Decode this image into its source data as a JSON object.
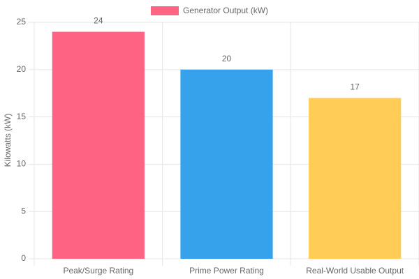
{
  "chart_data": {
    "type": "bar",
    "categories": [
      "Peak/Surge Rating",
      "Prime Power Rating",
      "Real-World Usable Output"
    ],
    "series": [
      {
        "name": "Generator Output (kW)",
        "colors": [
          "#ff6384",
          "#36a2eb",
          "#ffcd56"
        ],
        "values": [
          24,
          20,
          17
        ]
      }
    ],
    "y_label": "Kilowatts (kW)",
    "ylim": [
      0,
      25
    ],
    "yticks": [
      0,
      5,
      10,
      15,
      20,
      25
    ],
    "grid": true,
    "legend": "top"
  }
}
